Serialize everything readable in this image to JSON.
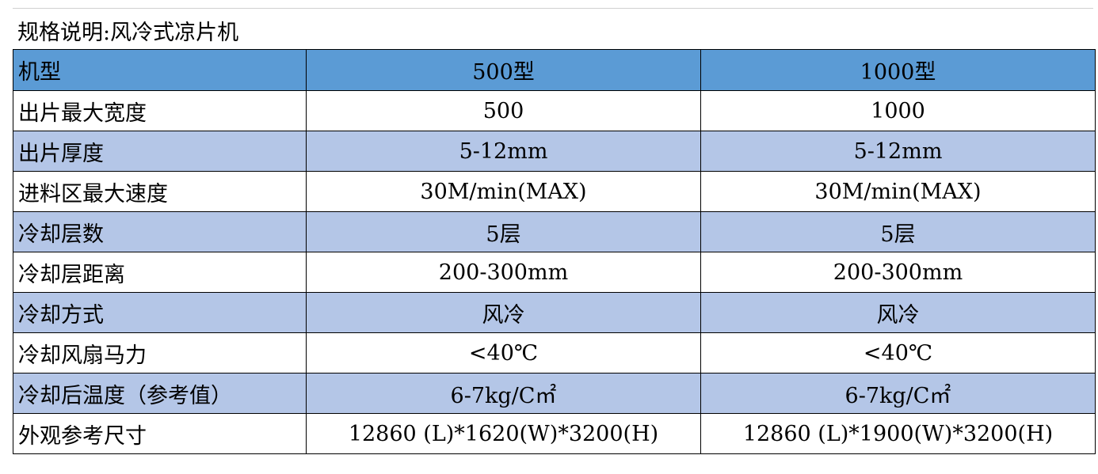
{
  "title": "规格说明:风冷式凉片机",
  "table": {
    "header": [
      "机型",
      "500型",
      "1000型"
    ],
    "rows": [
      [
        "出片最大宽度",
        "500",
        "1000"
      ],
      [
        "出片厚度",
        "5-12mm",
        "5-12mm"
      ],
      [
        "进料区最大速度",
        "30M/min(MAX)",
        "30M/min(MAX)"
      ],
      [
        "冷却层数",
        "5层",
        "5层"
      ],
      [
        "冷却层距离",
        "200-300mm",
        "200-300mm"
      ],
      [
        "冷却方式",
        "风冷",
        "风冷"
      ],
      [
        "冷却风扇马力",
        "<40℃",
        "<40℃"
      ],
      [
        "冷却后温度（参考值）",
        "6-7kg/C㎡",
        "6-7kg/C㎡"
      ],
      [
        "外观参考尺寸",
        "12860 (L)*1620(W)*3200(H)",
        "12860 (L)*1900(W)*3200(H)"
      ]
    ]
  }
}
